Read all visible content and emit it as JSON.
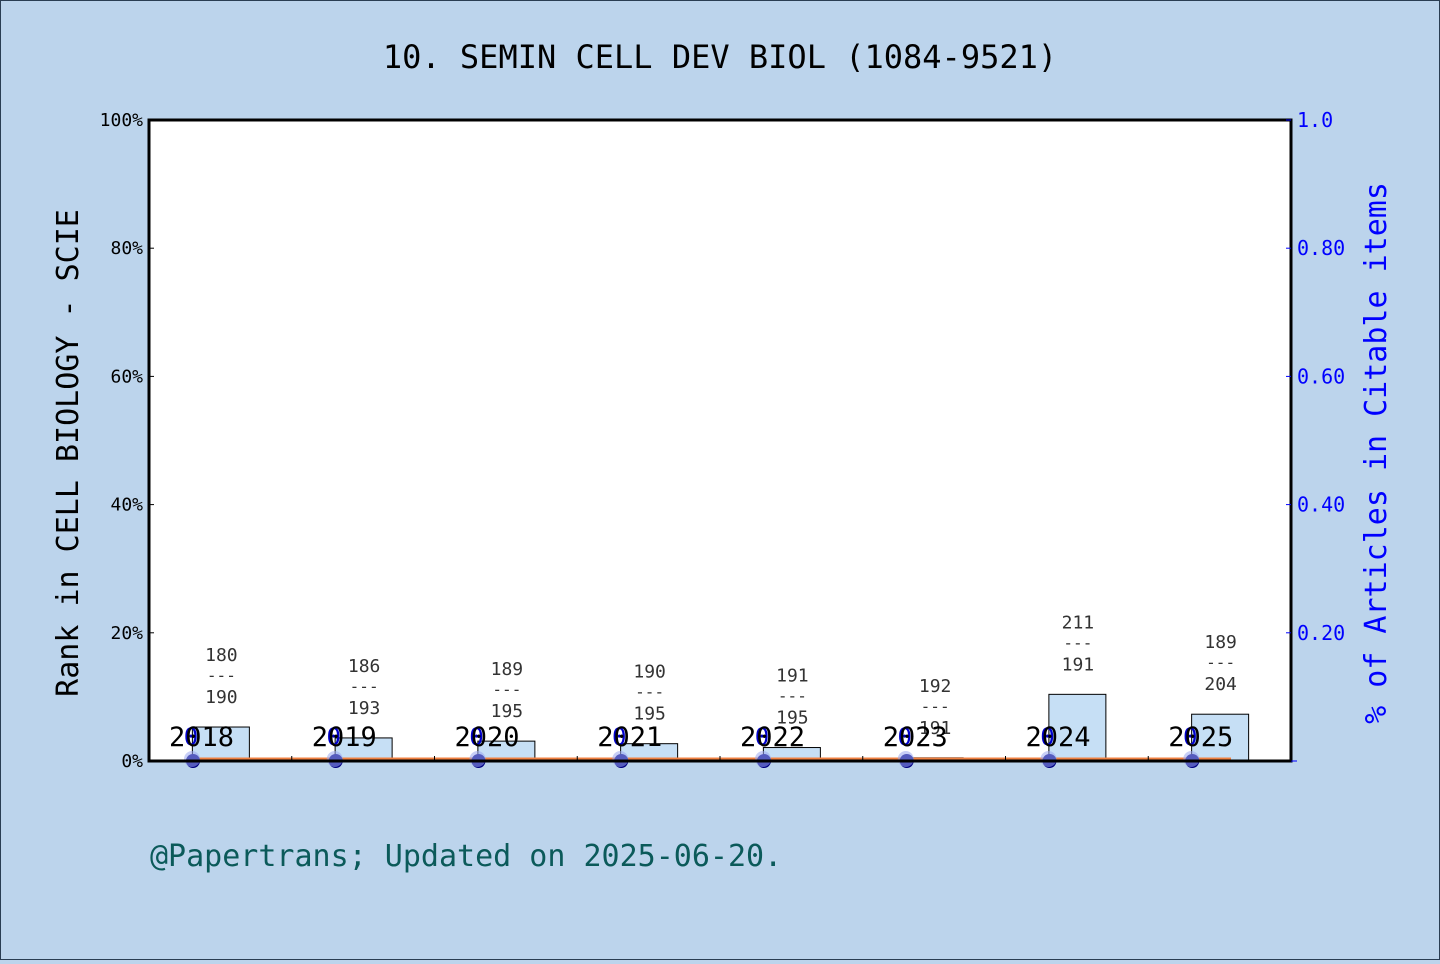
{
  "chart_data": {
    "type": "bar",
    "title": "10. SEMIN CELL DEV BIOL (1084-9521)",
    "ylabel": "Rank in CELL BIOLOGY - SCIE",
    "ylabel_right": "% of Articles in Citable items",
    "footer": "@Papertrans; Updated on 2025-06-20.",
    "categories": [
      "2018",
      "2019",
      "2020",
      "2021",
      "2022",
      "2023",
      "2024",
      "2025"
    ],
    "ylim": [
      0,
      100
    ],
    "ylim_right": [
      0,
      1.0
    ],
    "left_ticks": [
      "0%",
      "20%",
      "40%",
      "60%",
      "80%",
      "100%"
    ],
    "right_ticks": [
      "0.20",
      "0.40",
      "0.60",
      "0.80",
      "1.0"
    ],
    "ranks": [
      180,
      186,
      189,
      190,
      191,
      192,
      211,
      189
    ],
    "totals": [
      190,
      193,
      195,
      195,
      195,
      191,
      191,
      204
    ],
    "rank_separator": "---",
    "series": [
      {
        "values": [
          5.3,
          3.6,
          3.1,
          2.7,
          2.1,
          0.5,
          10.4,
          7.3
        ],
        "color": "#c6dff5"
      },
      {
        "values": [
          0,
          0,
          0,
          0,
          0,
          0,
          0,
          0
        ],
        "labels": [
          "0",
          "0",
          "0",
          "0",
          "0",
          "0",
          "0",
          "0"
        ],
        "color": "#000080",
        "axis": "right"
      }
    ],
    "grid": false,
    "colors": {
      "background": "#bcd4ec",
      "plot_background": "#ffffff",
      "right_axis": "#0000ff",
      "footer": "#0b5a5a",
      "baseline_line": "#f08040"
    }
  }
}
